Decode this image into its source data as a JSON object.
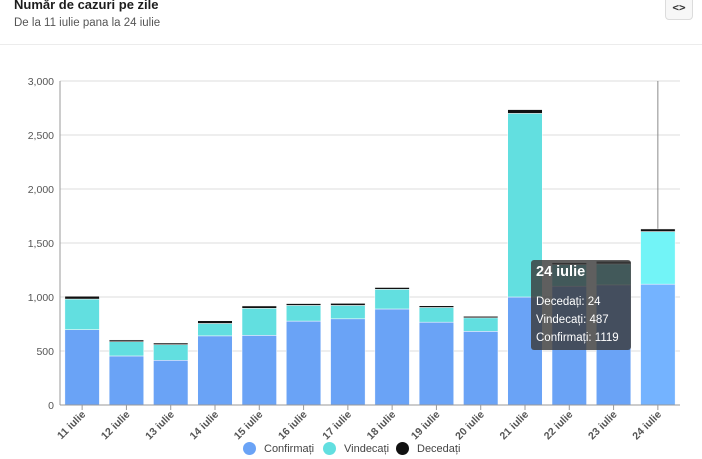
{
  "header": {
    "title": "Număr de cazuri pe zile",
    "subtitle": "De la 11 iulie pana la 24 iulie",
    "embed_label": "<>"
  },
  "colors": {
    "confirmed": "#6aa3f6",
    "recovered": "#62dfe0",
    "deaths": "#111111",
    "confirmed_hover": "#74b3ff",
    "recovered_hover": "#72f4f7",
    "grid": "#dedede"
  },
  "chart_data": {
    "type": "bar",
    "stacked": true,
    "categories": [
      "11 iulie",
      "12 iulie",
      "13 iulie",
      "14 iulie",
      "15 iulie",
      "16 iulie",
      "17 iulie",
      "18 iulie",
      "19 iulie",
      "20 iulie",
      "21 iulie",
      "22 iulie",
      "23 iulie",
      "24 iulie"
    ],
    "series": [
      {
        "name": "Confirmați",
        "values": [
          698,
          454,
          414,
          640,
          645,
          777,
          798,
          889,
          767,
          682,
          1000,
          1100,
          1112,
          1119
        ]
      },
      {
        "name": "Vindecați",
        "values": [
          283,
          132,
          145,
          115,
          250,
          145,
          124,
          182,
          136,
          125,
          1700,
          200,
          194,
          487
        ]
      },
      {
        "name": "Decedați",
        "values": [
          26,
          16,
          15,
          25,
          22,
          17,
          19,
          17,
          16,
          14,
          35,
          18,
          25,
          24
        ]
      }
    ],
    "yticks": [
      "0",
      "500",
      "1,000",
      "1,500",
      "2,000",
      "2,500",
      "3,000"
    ],
    "ylim": [
      0,
      3000
    ],
    "grid": true,
    "legend_position": "bottom",
    "highlighted_category": "24 iulie"
  },
  "tooltip": {
    "title": "24 iulie",
    "deaths_text": "Decedați: 24",
    "recovered_text": "Vindecați: 487",
    "confirmed_text": "Confirmați: 1119"
  }
}
